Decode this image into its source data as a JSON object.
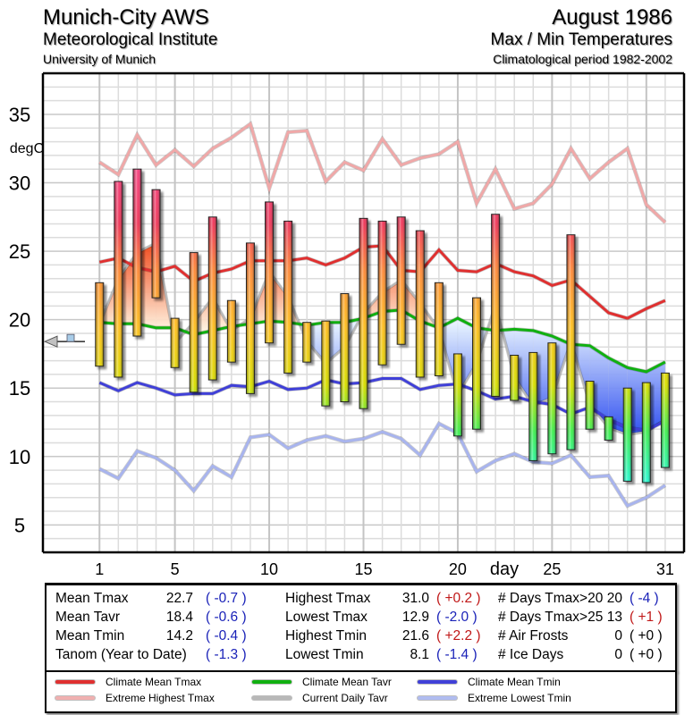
{
  "header": {
    "station": "Munich-City AWS",
    "institute": "Meteorological Institute",
    "university": "University of Munich",
    "period": "August 1986",
    "subtitle": "Max / Min Temperatures",
    "clim_period": "Climatological period 1982-2002"
  },
  "chart_data": {
    "type": "bar",
    "title": "August 1986 Max / Min Temperatures",
    "xlabel": "day",
    "ylabel": "degC",
    "ylim": [
      3,
      38
    ],
    "xlim": [
      -2,
      32
    ],
    "y_ticks": [
      5,
      10,
      15,
      20,
      25,
      30,
      35
    ],
    "x_ticks": [
      1,
      5,
      10,
      15,
      20,
      25,
      31
    ],
    "grid": true,
    "days": [
      1,
      2,
      3,
      4,
      5,
      6,
      7,
      8,
      9,
      10,
      11,
      12,
      13,
      14,
      15,
      16,
      17,
      18,
      19,
      20,
      21,
      22,
      23,
      24,
      25,
      26,
      27,
      28,
      29,
      30,
      31
    ],
    "daily_tmax": [
      22.7,
      30.1,
      31.0,
      29.5,
      20.1,
      24.9,
      27.5,
      21.4,
      25.6,
      28.6,
      27.2,
      19.8,
      19.9,
      21.9,
      27.4,
      27.2,
      27.5,
      26.5,
      22.7,
      17.5,
      21.6,
      27.7,
      17.4,
      17.6,
      18.3,
      26.2,
      15.5,
      12.9,
      15.0,
      15.4,
      16.1
    ],
    "daily_tmin": [
      16.6,
      15.8,
      18.8,
      21.6,
      16.5,
      14.7,
      15.6,
      16.9,
      14.6,
      18.3,
      16.1,
      16.9,
      13.7,
      14.0,
      13.5,
      16.7,
      18.2,
      15.8,
      15.9,
      11.5,
      12.0,
      14.4,
      14.1,
      9.7,
      10.2,
      10.5,
      12.0,
      11.2,
      8.2,
      8.1,
      9.2
    ],
    "series": [
      {
        "name": "Climate Mean Tmax",
        "color": "#e03030",
        "values": [
          24.2,
          24.5,
          23.8,
          23.5,
          23.9,
          22.8,
          23.4,
          23.7,
          24.3,
          24.3,
          24.3,
          24.5,
          24.0,
          24.5,
          25.3,
          25.4,
          23.6,
          23.5,
          25.1,
          23.6,
          23.5,
          24.1,
          23.5,
          23.2,
          22.5,
          22.9,
          21.7,
          20.5,
          20.1,
          20.8,
          21.4
        ]
      },
      {
        "name": "Extreme Highest Tmax",
        "color": "#f0a8a8",
        "values": [
          31.5,
          30.6,
          33.5,
          31.3,
          32.4,
          31.2,
          32.5,
          33.3,
          34.3,
          29.6,
          33.7,
          33.8,
          30.1,
          31.5,
          30.9,
          33.2,
          31.3,
          31.8,
          32.1,
          33.0,
          28.5,
          31.0,
          28.1,
          28.5,
          29.9,
          32.5,
          30.3,
          31.5,
          32.5,
          28.4,
          27.1
        ]
      },
      {
        "name": "Climate Mean Tavr",
        "color": "#10b010",
        "values": [
          19.8,
          19.7,
          19.7,
          19.4,
          19.4,
          18.9,
          19.2,
          19.5,
          19.7,
          19.9,
          19.8,
          19.6,
          19.8,
          19.8,
          20.1,
          20.6,
          20.7,
          19.9,
          19.4,
          20.1,
          19.4,
          19.2,
          19.3,
          19.2,
          18.8,
          18.2,
          18.1,
          17.2,
          16.5,
          16.2,
          16.9
        ]
      },
      {
        "name": "Current Daily Tavr",
        "color": "#b8b8b8",
        "values": [
          19.7,
          23.0,
          24.9,
          25.6,
          18.3,
          19.8,
          21.6,
          19.2,
          20.1,
          23.5,
          21.7,
          18.4,
          16.8,
          18.0,
          20.5,
          22.0,
          22.9,
          21.2,
          19.3,
          14.5,
          16.8,
          21.1,
          15.8,
          13.7,
          14.3,
          18.4,
          13.8,
          12.1,
          11.6,
          11.8,
          12.7
        ]
      },
      {
        "name": "Climate Mean Tmin",
        "color": "#4040d8",
        "values": [
          15.4,
          14.8,
          15.4,
          15.0,
          14.5,
          14.6,
          14.6,
          15.2,
          15.1,
          15.5,
          14.9,
          15.0,
          15.6,
          15.3,
          15.4,
          15.7,
          15.7,
          14.9,
          15.2,
          15.3,
          14.8,
          14.2,
          14.4,
          14.0,
          13.8,
          13.1,
          13.6,
          12.7,
          12.1,
          11.9,
          12.6
        ]
      },
      {
        "name": "Extreme Lowest Tmin",
        "color": "#a8b4ee",
        "values": [
          9.1,
          8.4,
          10.4,
          9.9,
          9.0,
          7.5,
          9.3,
          8.5,
          11.4,
          11.6,
          10.6,
          11.2,
          11.5,
          11.1,
          11.3,
          11.8,
          11.3,
          10.1,
          12.4,
          11.7,
          8.9,
          9.7,
          10.2,
          9.6,
          9.5,
          10.1,
          8.5,
          8.6,
          6.4,
          7.0,
          7.9
        ]
      }
    ],
    "year_marker": 18.4
  },
  "stats": {
    "col1": [
      {
        "label": "Mean Tmax",
        "value": "22.7",
        "anom": "( -0.7 )",
        "sign": "neg"
      },
      {
        "label": "Mean Tavr",
        "value": "18.4",
        "anom": "( -0.6 )",
        "sign": "neg"
      },
      {
        "label": "Mean Tmin",
        "value": "14.2",
        "anom": "( -0.4 )",
        "sign": "neg"
      },
      {
        "label": "Tanom (Year to Date)",
        "value": "",
        "anom": "( -1.3 )",
        "sign": "neg"
      }
    ],
    "col2": [
      {
        "label": "Highest Tmax",
        "value": "31.0",
        "anom": "( +0.2 )",
        "sign": "pos"
      },
      {
        "label": "Lowest Tmax",
        "value": "12.9",
        "anom": "( -2.0 )",
        "sign": "neg"
      },
      {
        "label": "Highest Tmin",
        "value": "21.6",
        "anom": "( +2.2 )",
        "sign": "pos"
      },
      {
        "label": "Lowest Tmin",
        "value": "8.1",
        "anom": "( -1.4 )",
        "sign": "neg"
      }
    ],
    "col3": [
      {
        "label": "# Days Tmax>20",
        "value": "20",
        "anom": "( -4 )",
        "sign": "neg"
      },
      {
        "label": "# Days Tmax>25",
        "value": "13",
        "anom": "( +1 )",
        "sign": "pos"
      },
      {
        "label": "# Air Frosts",
        "value": "0",
        "anom": "( +0 )",
        "sign": "zero"
      },
      {
        "label": "# Ice Days",
        "value": "0",
        "anom": "( +0 )",
        "sign": "zero"
      }
    ]
  },
  "legend": [
    {
      "label": "Climate Mean Tmax",
      "color": "#e03030"
    },
    {
      "label": "Extreme Highest Tmax",
      "color": "#f0b0b0"
    },
    {
      "label": "Climate Mean Tavr",
      "color": "#10b010"
    },
    {
      "label": "Current Daily Tavr",
      "color": "#b8b8b8"
    },
    {
      "label": "Climate Mean Tmin",
      "color": "#4040d8"
    },
    {
      "label": "Extreme Lowest Tmin",
      "color": "#b0bcf0"
    }
  ]
}
